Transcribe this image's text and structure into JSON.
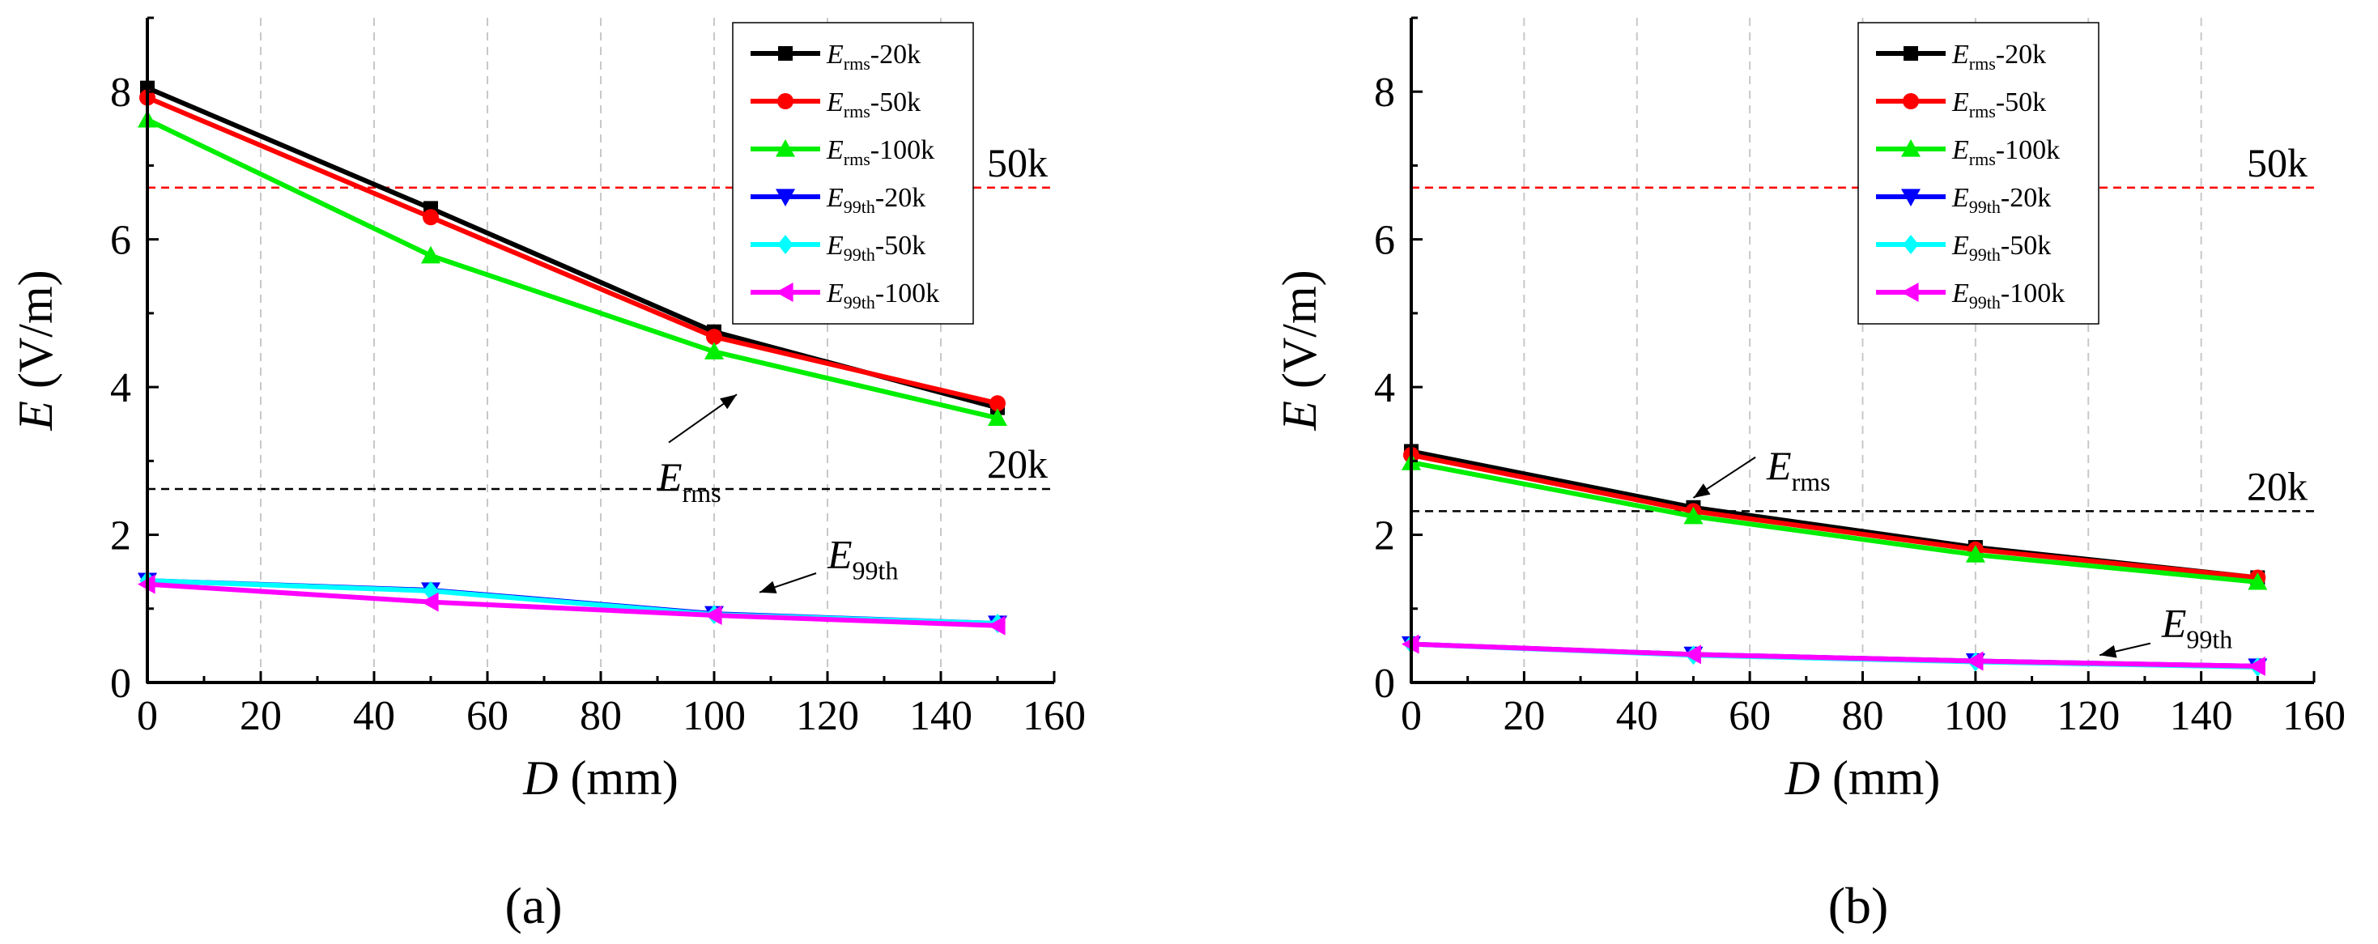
{
  "chart_data": [
    {
      "type": "line",
      "panel_label": "(a)",
      "xlabel": "D",
      "xlabel_unit": " (mm)",
      "ylabel": "E",
      "ylabel_unit": " (V/m)",
      "xlim": [
        0,
        160
      ],
      "ylim": [
        0,
        9
      ],
      "xticks": [
        0,
        20,
        40,
        60,
        80,
        100,
        120,
        140,
        160
      ],
      "yticks": [
        0,
        2,
        4,
        6,
        8
      ],
      "grid": "vertical dashed",
      "legend_position": "top-right",
      "x": [
        0,
        50,
        100,
        150
      ],
      "series": [
        {
          "name_main": "E",
          "name_sub": "rms",
          "name_suffix": "-20k",
          "color": "#000000",
          "marker": "square",
          "values": [
            8.05,
            6.42,
            4.75,
            3.72
          ]
        },
        {
          "name_main": "E",
          "name_sub": "rms",
          "name_suffix": "-50k",
          "color": "#ff0000",
          "marker": "circle",
          "values": [
            7.92,
            6.3,
            4.68,
            3.78
          ]
        },
        {
          "name_main": "E",
          "name_sub": "rms",
          "name_suffix": "-100k",
          "color": "#00ee00",
          "marker": "triangle-up",
          "values": [
            7.62,
            5.78,
            4.48,
            3.58
          ]
        },
        {
          "name_main": "E",
          "name_sub": "99th",
          "name_suffix": "-20k",
          "color": "#0000ff",
          "marker": "triangle-down",
          "values": [
            1.38,
            1.25,
            0.93,
            0.8
          ]
        },
        {
          "name_main": "E",
          "name_sub": "99th",
          "name_suffix": "-50k",
          "color": "#00ffff",
          "marker": "diamond",
          "values": [
            1.38,
            1.24,
            0.92,
            0.8
          ]
        },
        {
          "name_main": "E",
          "name_sub": "99th",
          "name_suffix": "-100k",
          "color": "#ff00ff",
          "marker": "triangle-left",
          "values": [
            1.33,
            1.09,
            0.91,
            0.77
          ]
        }
      ],
      "reference_lines": [
        {
          "label": "50k",
          "y": 6.7,
          "color": "#ff0000"
        },
        {
          "label": "20k",
          "y": 2.62,
          "color": "#000000"
        }
      ],
      "annotations": [
        {
          "main": "E",
          "sub": "rms",
          "text_x": 90,
          "text_y": 2.6,
          "arrow_from": [
            92,
            3.25
          ],
          "arrow_to": [
            104,
            3.9
          ]
        },
        {
          "main": "E",
          "sub": "99th",
          "text_x": 120,
          "text_y": 1.55,
          "arrow_from": [
            118,
            1.48
          ],
          "arrow_to": [
            108,
            1.22
          ]
        }
      ]
    },
    {
      "type": "line",
      "panel_label": "(b)",
      "xlabel": "D",
      "xlabel_unit": " (mm)",
      "ylabel": "E",
      "ylabel_unit": " (V/m)",
      "xlim": [
        0,
        160
      ],
      "ylim": [
        0,
        9
      ],
      "xticks": [
        0,
        20,
        40,
        60,
        80,
        100,
        120,
        140,
        160
      ],
      "yticks": [
        0,
        2,
        4,
        6,
        8
      ],
      "grid": "vertical dashed",
      "legend_position": "top-right",
      "x": [
        0,
        50,
        100,
        150
      ],
      "series": [
        {
          "name_main": "E",
          "name_sub": "rms",
          "name_suffix": "-20k",
          "color": "#000000",
          "marker": "square",
          "values": [
            3.13,
            2.37,
            1.83,
            1.42
          ]
        },
        {
          "name_main": "E",
          "name_sub": "rms",
          "name_suffix": "-50k",
          "color": "#ff0000",
          "marker": "circle",
          "values": [
            3.08,
            2.32,
            1.8,
            1.42
          ]
        },
        {
          "name_main": "E",
          "name_sub": "rms",
          "name_suffix": "-100k",
          "color": "#00ee00",
          "marker": "triangle-up",
          "values": [
            2.98,
            2.25,
            1.73,
            1.36
          ]
        },
        {
          "name_main": "E",
          "name_sub": "99th",
          "name_suffix": "-20k",
          "color": "#0000ff",
          "marker": "triangle-down",
          "values": [
            0.52,
            0.38,
            0.29,
            0.22
          ]
        },
        {
          "name_main": "E",
          "name_sub": "99th",
          "name_suffix": "-50k",
          "color": "#00ffff",
          "marker": "diamond",
          "values": [
            0.52,
            0.37,
            0.28,
            0.21
          ]
        },
        {
          "name_main": "E",
          "name_sub": "99th",
          "name_suffix": "-100k",
          "color": "#ff00ff",
          "marker": "triangle-left",
          "values": [
            0.52,
            0.38,
            0.29,
            0.22
          ]
        }
      ],
      "reference_lines": [
        {
          "label": "50k",
          "y": 6.7,
          "color": "#ff0000"
        },
        {
          "label": "20k",
          "y": 2.32,
          "color": "#000000"
        }
      ],
      "annotations": [
        {
          "main": "E",
          "sub": "rms",
          "text_x": 63,
          "text_y": 2.75,
          "arrow_from": [
            61,
            3.05
          ],
          "arrow_to": [
            50,
            2.5
          ]
        },
        {
          "main": "E",
          "sub": "99th",
          "text_x": 133,
          "text_y": 0.62,
          "arrow_from": [
            131,
            0.53
          ],
          "arrow_to": [
            122,
            0.37
          ]
        }
      ]
    }
  ]
}
